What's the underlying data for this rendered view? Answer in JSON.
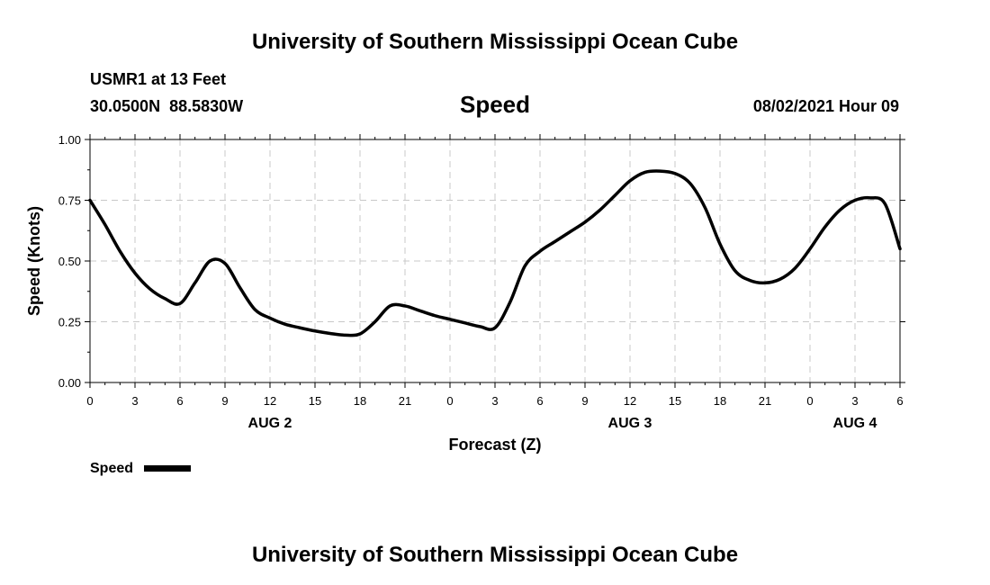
{
  "header": {
    "title": "University of Southern Mississippi Ocean Cube",
    "station": "USMR1 at 13 Feet",
    "coords": "30.0500N  88.5830W",
    "chart_name": "Speed",
    "issued": "08/02/2021 Hour 09"
  },
  "footer": {
    "title": "University of Southern Mississippi Ocean Cube"
  },
  "chart_data": {
    "type": "line",
    "title": "Speed",
    "xlabel": "Forecast (Z)",
    "ylabel": "Speed (Knots)",
    "xlim": [
      0,
      54
    ],
    "ylim": [
      0,
      1
    ],
    "grid": true,
    "y_ticks": [
      0,
      0.25,
      0.5,
      0.75,
      1.0
    ],
    "y_tick_labels": [
      "0.00",
      "0.25",
      "0.50",
      "0.75",
      "1.00"
    ],
    "x_ticks": [
      0,
      3,
      6,
      9,
      12,
      15,
      18,
      21,
      24,
      27,
      30,
      33,
      36,
      39,
      42,
      45,
      48,
      51,
      54
    ],
    "x_tick_labels": [
      "0",
      "3",
      "6",
      "9",
      "12",
      "15",
      "18",
      "21",
      "0",
      "3",
      "6",
      "9",
      "12",
      "15",
      "18",
      "21",
      "0",
      "3",
      "6"
    ],
    "day_labels": [
      {
        "x": 12,
        "label": "AUG 2"
      },
      {
        "x": 36,
        "label": "AUG 3"
      },
      {
        "x": 51,
        "label": "AUG 4"
      }
    ],
    "legend": {
      "label": "Speed",
      "position": "bottom-left"
    },
    "series": [
      {
        "name": "Speed",
        "color": "#000000",
        "x": [
          0,
          1,
          2,
          3,
          4,
          5,
          6,
          7,
          8,
          9,
          10,
          11,
          12,
          13,
          14,
          15,
          16,
          17,
          18,
          19,
          20,
          21,
          22,
          23,
          24,
          25,
          26,
          27,
          28,
          29,
          30,
          31,
          32,
          33,
          34,
          35,
          36,
          37,
          38,
          39,
          40,
          41,
          42,
          43,
          44,
          45,
          46,
          47,
          48,
          49,
          50,
          51,
          52,
          53,
          54
        ],
        "values": [
          0.75,
          0.65,
          0.54,
          0.45,
          0.385,
          0.345,
          0.325,
          0.41,
          0.5,
          0.49,
          0.39,
          0.3,
          0.265,
          0.24,
          0.225,
          0.212,
          0.202,
          0.195,
          0.2,
          0.25,
          0.315,
          0.315,
          0.295,
          0.275,
          0.26,
          0.245,
          0.23,
          0.225,
          0.33,
          0.48,
          0.54,
          0.58,
          0.62,
          0.66,
          0.71,
          0.77,
          0.83,
          0.865,
          0.87,
          0.86,
          0.82,
          0.72,
          0.57,
          0.46,
          0.42,
          0.41,
          0.425,
          0.47,
          0.55,
          0.64,
          0.71,
          0.75,
          0.76,
          0.735,
          0.55
        ]
      }
    ]
  }
}
